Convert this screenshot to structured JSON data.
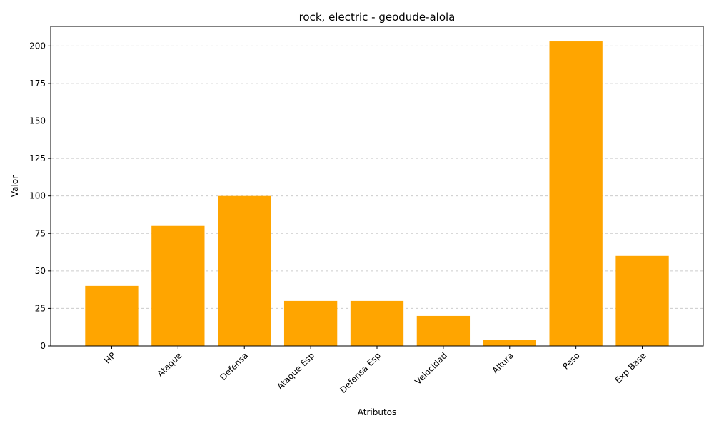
{
  "chart_data": {
    "type": "bar",
    "title": "rock, electric - geodude-alola",
    "xlabel": "Atributos",
    "ylabel": "Valor",
    "categories": [
      "HP",
      "Ataque",
      "Defensa",
      "Ataque Esp",
      "Defensa Esp",
      "Velocidad",
      "Altura",
      "Peso",
      "Exp Base"
    ],
    "values": [
      40,
      80,
      100,
      30,
      30,
      20,
      4,
      203,
      60
    ],
    "ylim": [
      0,
      213
    ],
    "yticks": [
      0,
      25,
      50,
      75,
      100,
      125,
      150,
      175,
      200
    ],
    "bar_color": "#ffa500",
    "grid": "y-dashed"
  }
}
